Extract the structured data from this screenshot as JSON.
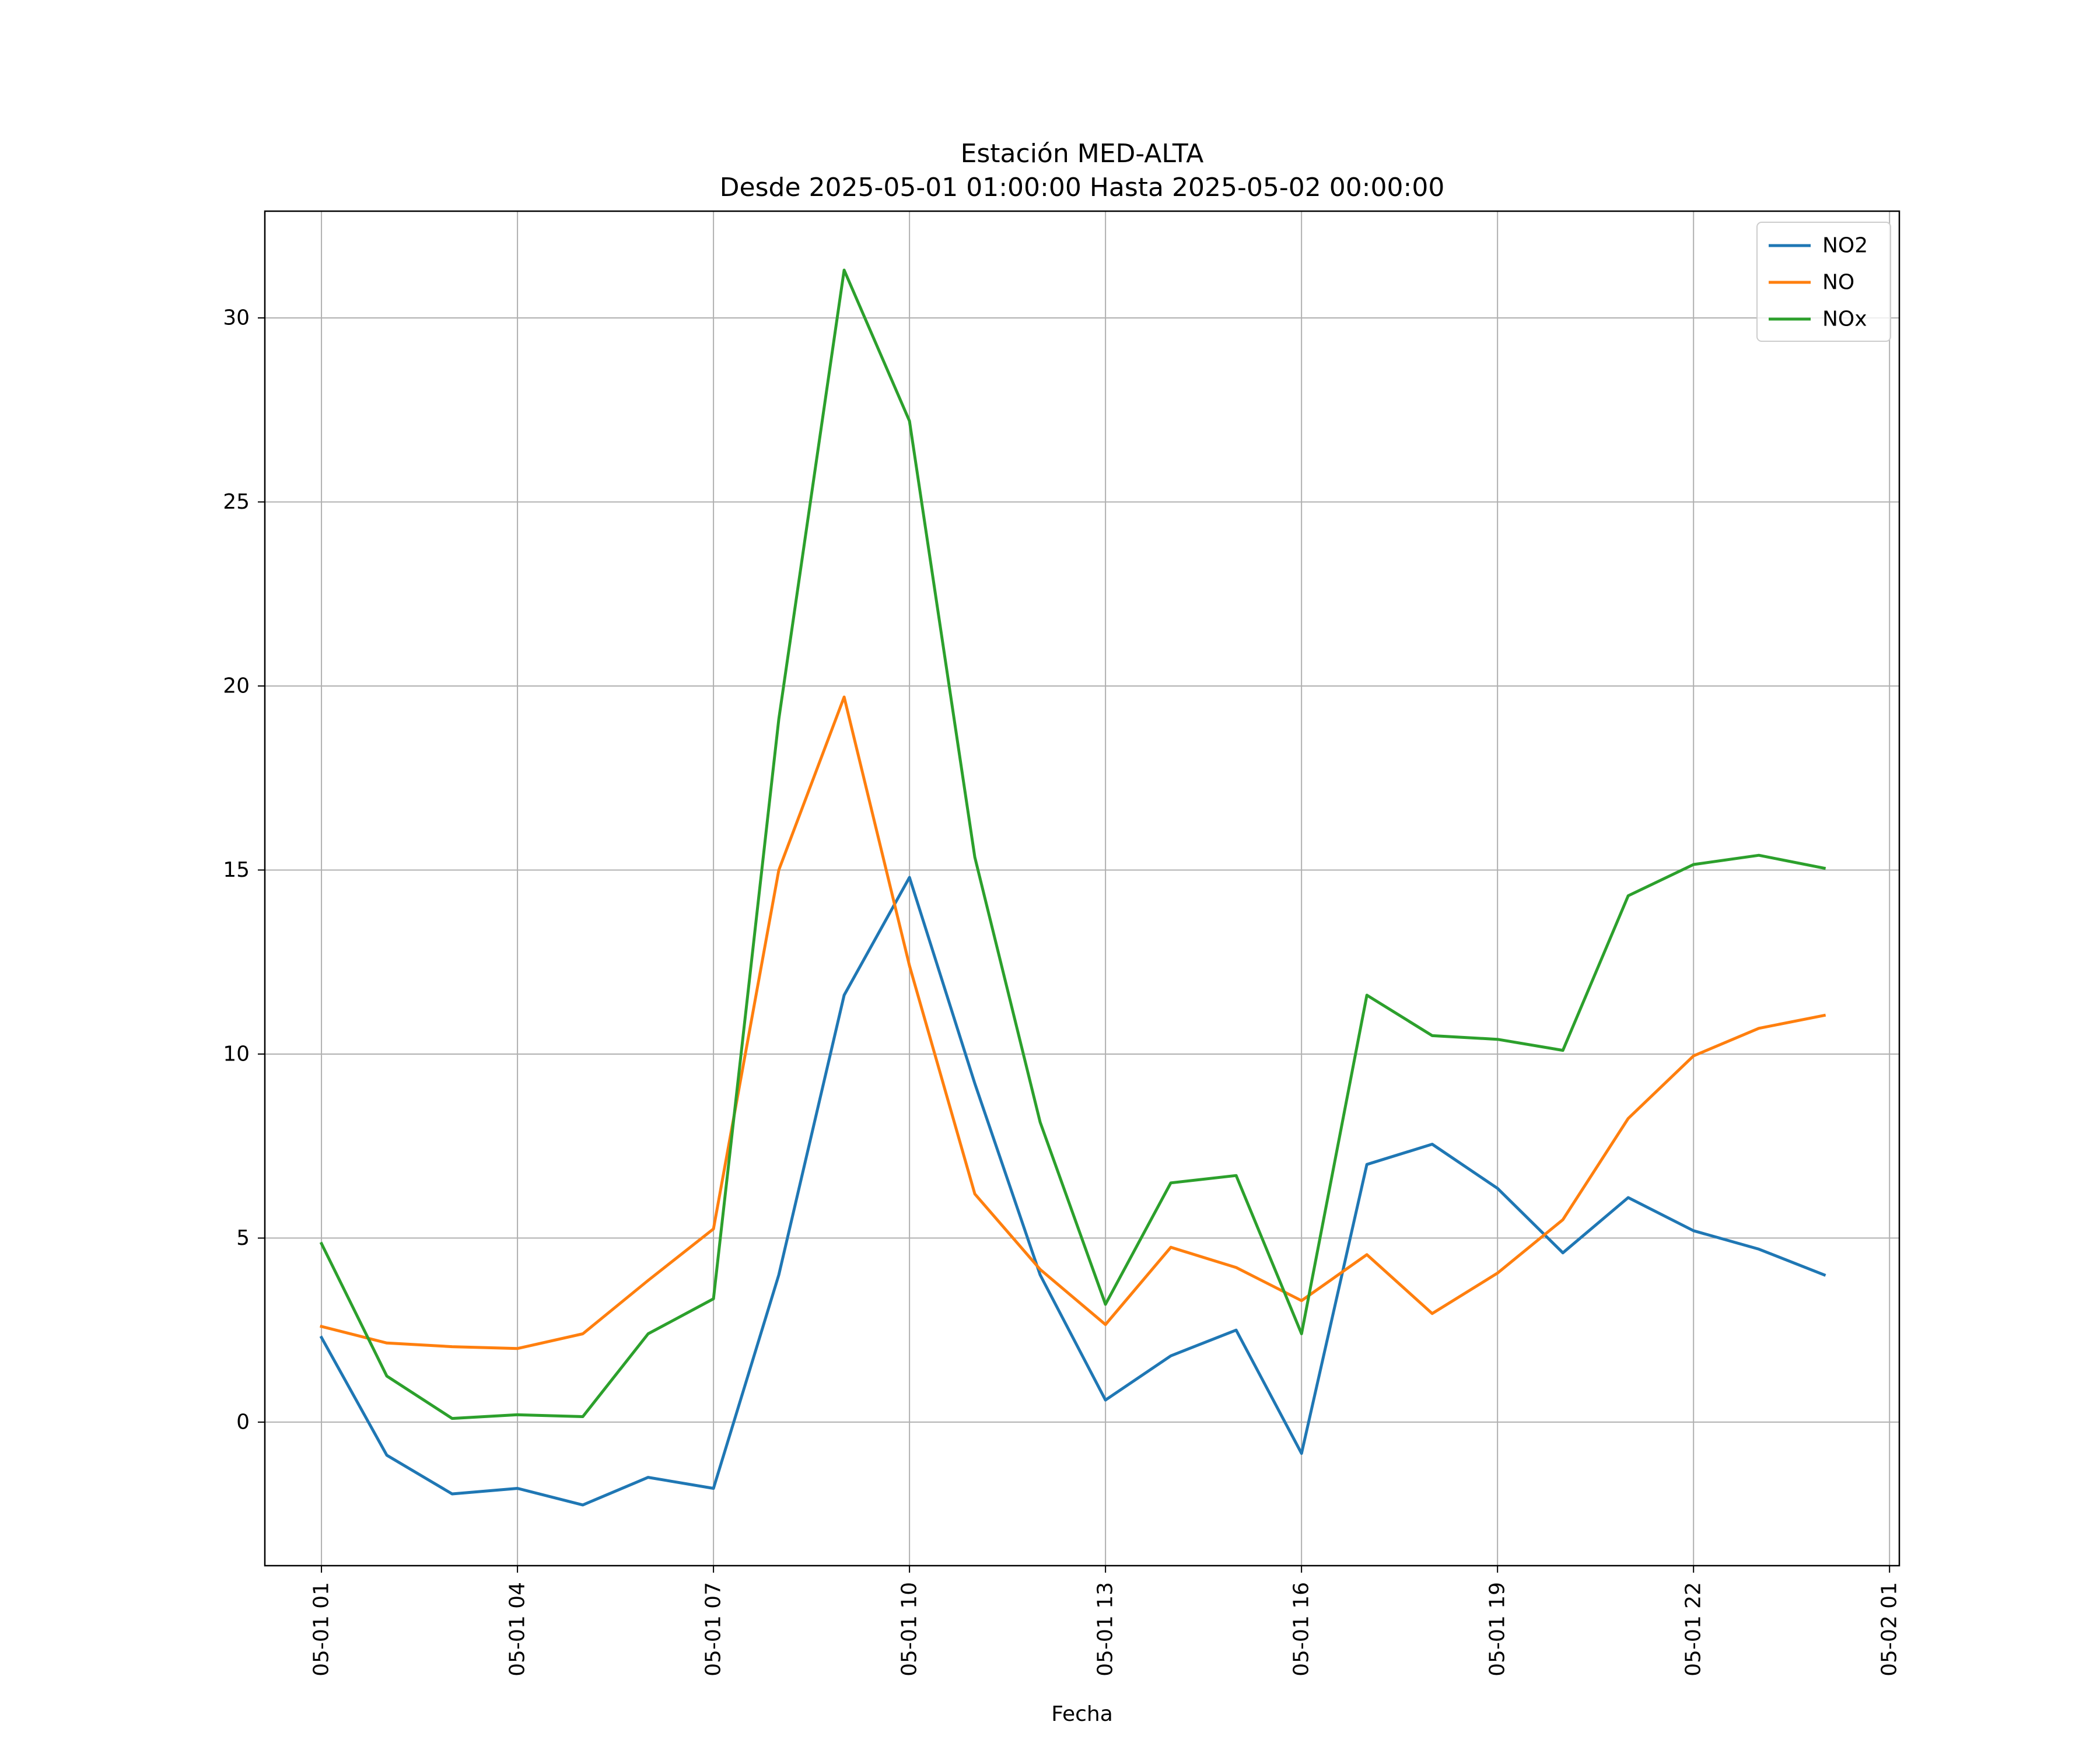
{
  "chart_data": {
    "type": "line",
    "title": "Estación MED-ALTA",
    "subtitle": "Desde 2025-05-01 01:00:00 Hasta 2025-05-02 00:00:00",
    "xlabel": "Fecha",
    "ylabel": "",
    "x": [
      "2025-05-01 01:00",
      "2025-05-01 02:00",
      "2025-05-01 03:00",
      "2025-05-01 04:00",
      "2025-05-01 05:00",
      "2025-05-01 06:00",
      "2025-05-01 07:00",
      "2025-05-01 08:00",
      "2025-05-01 09:00",
      "2025-05-01 10:00",
      "2025-05-01 11:00",
      "2025-05-01 12:00",
      "2025-05-01 13:00",
      "2025-05-01 14:00",
      "2025-05-01 15:00",
      "2025-05-01 16:00",
      "2025-05-01 17:00",
      "2025-05-01 18:00",
      "2025-05-01 19:00",
      "2025-05-01 20:00",
      "2025-05-01 21:00",
      "2025-05-01 22:00",
      "2025-05-01 23:00",
      "2025-05-02 00:00"
    ],
    "xlim": [
      "2025-05-01 00:08",
      "2025-05-02 01:09"
    ],
    "ylim": [
      -3.9,
      32.9
    ],
    "x_ticks": [
      {
        "x": "2025-05-01 01:00",
        "label": "05-01 01"
      },
      {
        "x": "2025-05-01 04:00",
        "label": "05-01 04"
      },
      {
        "x": "2025-05-01 07:00",
        "label": "05-01 07"
      },
      {
        "x": "2025-05-01 10:00",
        "label": "05-01 10"
      },
      {
        "x": "2025-05-01 13:00",
        "label": "05-01 13"
      },
      {
        "x": "2025-05-01 16:00",
        "label": "05-01 16"
      },
      {
        "x": "2025-05-01 19:00",
        "label": "05-01 19"
      },
      {
        "x": "2025-05-01 22:00",
        "label": "05-01 22"
      },
      {
        "x": "2025-05-02 01:00",
        "label": "05-02 01"
      }
    ],
    "y_ticks": [
      0,
      5,
      10,
      15,
      20,
      25,
      30
    ],
    "grid": true,
    "legend_position": "top-right",
    "series": [
      {
        "name": "NO2",
        "color": "#1f77b4",
        "values": [
          2.3,
          -0.9,
          -1.95,
          -1.8,
          -2.25,
          -1.5,
          -1.8,
          4.0,
          11.6,
          14.8,
          9.2,
          4.0,
          0.6,
          1.8,
          2.5,
          -0.85,
          7.0,
          7.55,
          6.35,
          4.6,
          6.1,
          5.2,
          4.7,
          4.0
        ]
      },
      {
        "name": "NO",
        "color": "#ff7f0e",
        "values": [
          2.6,
          2.15,
          2.05,
          2.0,
          2.4,
          3.85,
          5.25,
          15.0,
          19.7,
          12.4,
          6.2,
          4.15,
          2.65,
          4.75,
          4.2,
          3.3,
          4.55,
          2.95,
          4.05,
          5.5,
          8.25,
          9.95,
          10.7,
          11.05
        ]
      },
      {
        "name": "NOx",
        "color": "#2ca02c",
        "values": [
          4.85,
          1.25,
          0.1,
          0.2,
          0.15,
          2.4,
          3.35,
          19.1,
          31.3,
          27.2,
          15.35,
          8.15,
          3.2,
          6.5,
          6.7,
          2.4,
          11.6,
          10.5,
          10.4,
          10.1,
          14.3,
          15.15,
          15.4,
          15.05
        ]
      }
    ]
  }
}
